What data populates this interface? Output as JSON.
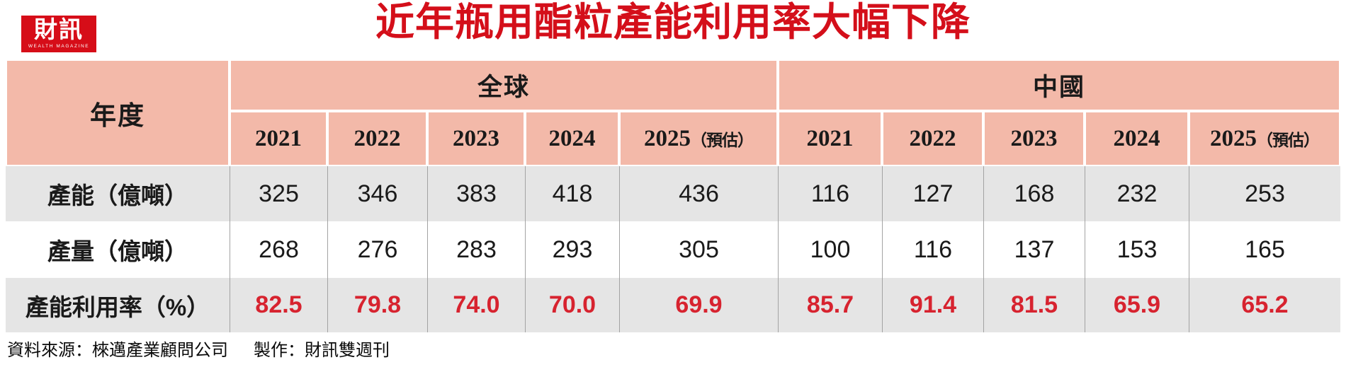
{
  "logo": {
    "name": "財訊",
    "subtitle": "WEALTH MAGAZINE"
  },
  "title": "近年瓶用酯粒產能利用率大幅下降",
  "colors": {
    "accent_red": "#d40f1a",
    "value_red": "#d7232f",
    "header_pink": "#f3b9a9",
    "row_gray": "#e5e5e5"
  },
  "table": {
    "corner_label": "年度",
    "groups": [
      {
        "label": "全球"
      },
      {
        "label": "中國"
      }
    ],
    "year_headers": [
      {
        "year": "2021",
        "suffix": ""
      },
      {
        "year": "2022",
        "suffix": ""
      },
      {
        "year": "2023",
        "suffix": ""
      },
      {
        "year": "2024",
        "suffix": ""
      },
      {
        "year": "2025",
        "suffix": "（預估）"
      },
      {
        "year": "2021",
        "suffix": ""
      },
      {
        "year": "2022",
        "suffix": ""
      },
      {
        "year": "2023",
        "suffix": ""
      },
      {
        "year": "2024",
        "suffix": ""
      },
      {
        "year": "2025",
        "suffix": "（預估）"
      }
    ],
    "rows": [
      {
        "label": "產能（億噸）",
        "values": [
          "325",
          "346",
          "383",
          "418",
          "436",
          "116",
          "127",
          "168",
          "232",
          "253"
        ]
      },
      {
        "label": "產量（億噸）",
        "values": [
          "268",
          "276",
          "283",
          "293",
          "305",
          "100",
          "116",
          "137",
          "153",
          "165"
        ]
      },
      {
        "label": "產能利用率（%）",
        "values": [
          "82.5",
          "79.8",
          "74.0",
          "70.0",
          "69.9",
          "85.7",
          "91.4",
          "81.5",
          "65.9",
          "65.2"
        ]
      }
    ]
  },
  "footer": {
    "source": "資料來源：棶邁產業顧問公司",
    "credit": "製作：財訊雙週刊"
  },
  "chart_data": {
    "type": "table",
    "title": "近年瓶用酯粒產能利用率大幅下降",
    "column_groups": [
      "全球",
      "中國"
    ],
    "years": [
      "2021",
      "2022",
      "2023",
      "2024",
      "2025（預估）"
    ],
    "rows": [
      {
        "label": "產能（億噸）",
        "global": [
          325,
          346,
          383,
          418,
          436
        ],
        "china": [
          116,
          127,
          168,
          232,
          253
        ]
      },
      {
        "label": "產量（億噸）",
        "global": [
          268,
          276,
          283,
          293,
          305
        ],
        "china": [
          100,
          116,
          137,
          153,
          165
        ]
      },
      {
        "label": "產能利用率（%）",
        "global": [
          82.5,
          79.8,
          74.0,
          70.0,
          69.9
        ],
        "china": [
          85.7,
          91.4,
          81.5,
          65.9,
          65.2
        ]
      }
    ],
    "source": "資料來源：棶邁產業顧問公司",
    "credit": "製作：財訊雙週刊"
  }
}
